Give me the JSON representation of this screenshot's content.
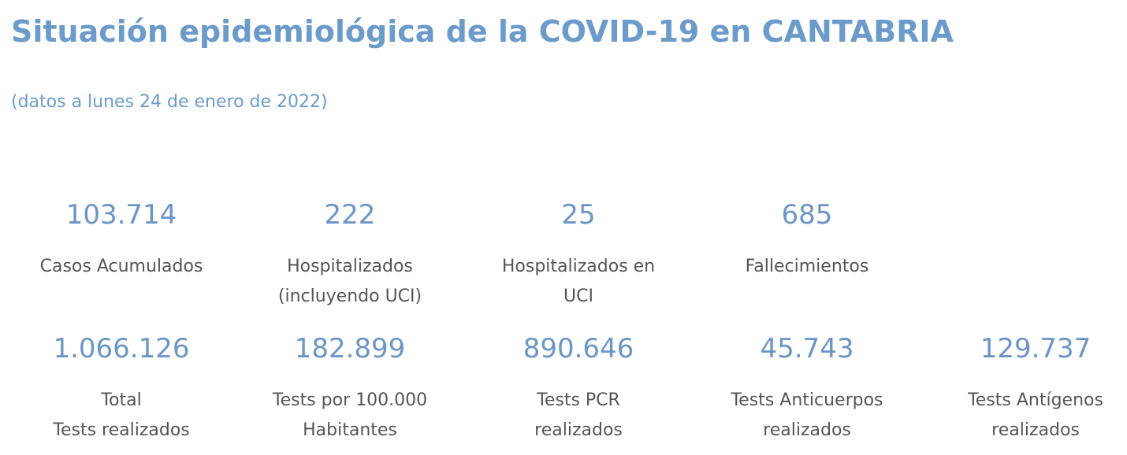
{
  "header": {
    "title": "Situación epidemiológica de la COVID-19 en CANTABRIA",
    "subtitle": "(datos a lunes 24 de enero de 2022)"
  },
  "stats_row1": [
    {
      "value": "103.714",
      "label": "Casos Acumulados"
    },
    {
      "value": "222",
      "label": "Hospitalizados\n(incluyendo UCI)"
    },
    {
      "value": "25",
      "label": "Hospitalizados en\nUCI"
    },
    {
      "value": "685",
      "label": "Fallecimientos"
    }
  ],
  "stats_row2": [
    {
      "value": "1.066.126",
      "label": "Total\nTests realizados"
    },
    {
      "value": "182.899",
      "label": "Tests por 100.000\nHabitantes"
    },
    {
      "value": "890.646",
      "label": "Tests PCR\nrealizados"
    },
    {
      "value": "45.743",
      "label": "Tests Anticuerpos\nrealizados"
    },
    {
      "value": "129.737",
      "label": "Tests Antígenos\nrealizados"
    }
  ]
}
